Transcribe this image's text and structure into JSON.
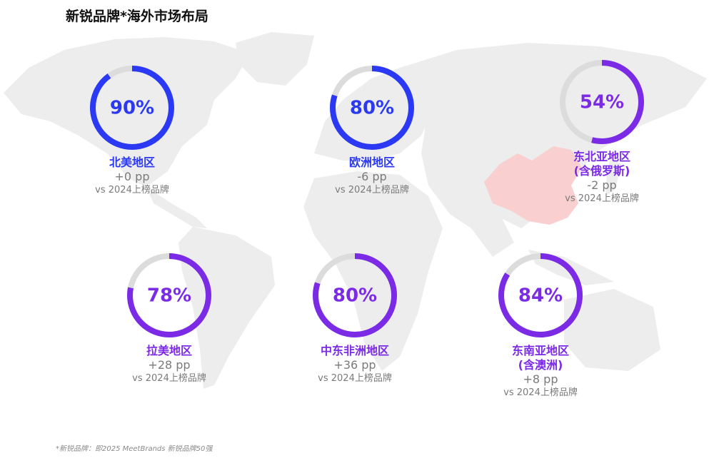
{
  "title": "新锐品牌*海外市场布局",
  "footnote": "*新锐品牌：即2025 MeetBrands 新锐品牌50强",
  "colors": {
    "blue": "#2b39f5",
    "purple": "#7b2be6",
    "track": "#dcdcdc",
    "china": "#f9cfcf",
    "land": "#ededed"
  },
  "regions": [
    {
      "name": "北美地区",
      "sub": "",
      "percent": "90%",
      "change": "+0 pp",
      "vs": "vs 2024上榜品牌",
      "color": "blue"
    },
    {
      "name": "欧洲地区",
      "sub": "",
      "percent": "80%",
      "change": "-6 pp",
      "vs": "vs 2024上榜品牌",
      "color": "blue"
    },
    {
      "name": "东北亚地区",
      "sub": "(含俄罗斯)",
      "percent": "54%",
      "change": "-2 pp",
      "vs": "vs 2024上榜品牌",
      "color": "purple"
    },
    {
      "name": "拉美地区",
      "sub": "",
      "percent": "78%",
      "change": "+28 pp",
      "vs": "vs 2024上榜品牌",
      "color": "purple"
    },
    {
      "name": "中东非洲地区",
      "sub": "",
      "percent": "80%",
      "change": "+36 pp",
      "vs": "vs 2024上榜品牌",
      "color": "purple"
    },
    {
      "name": "东南亚地区",
      "sub": "(含澳洲)",
      "percent": "84%",
      "change": "+8 pp",
      "vs": "vs 2024上榜品牌",
      "color": "purple"
    }
  ],
  "chart_data": {
    "type": "pie",
    "title": "新锐品牌*海外市场布局",
    "categories": [
      "北美地区",
      "欧洲地区",
      "东北亚地区(含俄罗斯)",
      "拉美地区",
      "中东非洲地区",
      "东南亚地区(含澳洲)"
    ],
    "values": [
      90,
      80,
      54,
      78,
      80,
      84
    ],
    "change_pp": [
      0,
      -6,
      -2,
      28,
      36,
      8
    ],
    "ylim": [
      0,
      100
    ]
  }
}
